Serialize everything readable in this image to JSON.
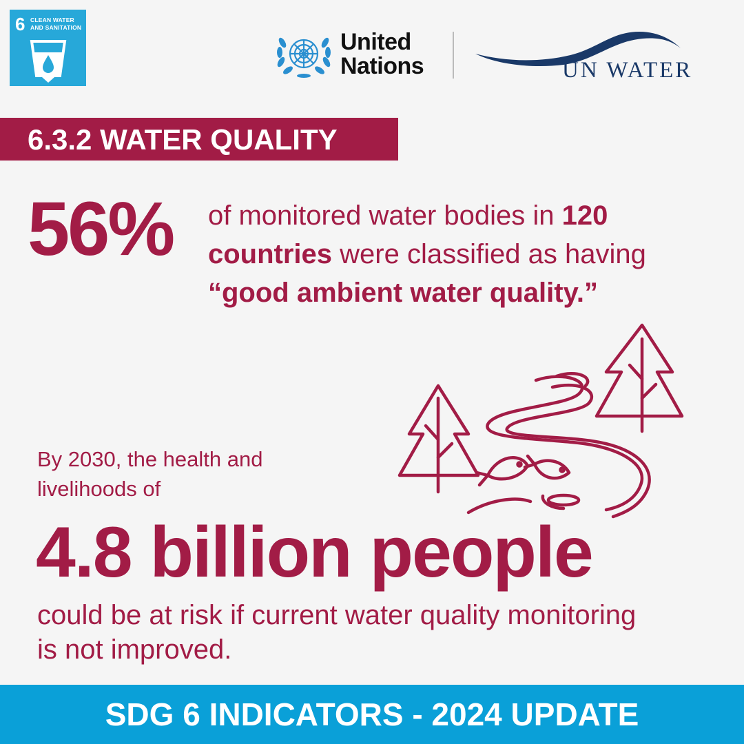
{
  "sdg": {
    "number": "6",
    "title_line1": "CLEAN WATER",
    "title_line2": "AND SANITATION",
    "icon": "water-glass-drop-icon",
    "color": "#27a8d9"
  },
  "header": {
    "un_line1": "United",
    "un_line2": "Nations",
    "un_logo_icon": "un-emblem-icon",
    "unwater_text": "UN WATER",
    "unwater_color": "#1a3968"
  },
  "banner": {
    "title": "6.3.2 WATER QUALITY",
    "color": "#a21c46"
  },
  "stat1": {
    "value": "56%",
    "part1": "of monitored water bodies in ",
    "bold1": "120 countries",
    "part2": " were classified as having ",
    "bold2": "“good ambient water quality.”"
  },
  "stat2": {
    "intro": "By 2030, the health and livelihoods of",
    "value": "4.8 billion people",
    "outro": "could be at risk if current water quality monitoring is not improved."
  },
  "illustration": {
    "icon": "trees-river-fish-icon"
  },
  "footer": {
    "text": "SDG 6 INDICATORS - 2024 UPDATE",
    "color": "#0aa0d8"
  }
}
